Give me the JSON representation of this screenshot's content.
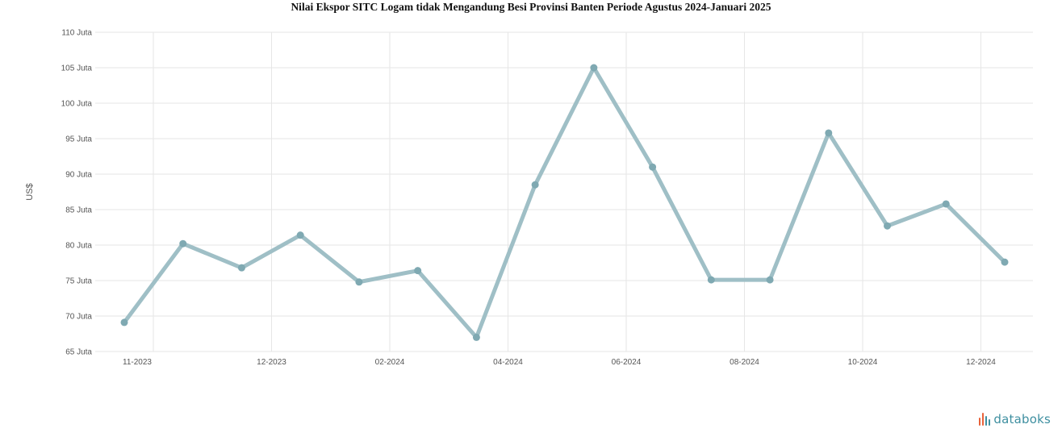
{
  "title": "Nilai Ekspor SITC Logam tidak Mengandung Besi Provinsi Banten Periode Agustus 2024-Januari 2025",
  "brand": {
    "text": "databoks",
    "icon": "databoks-logo-icon",
    "accent": "#e8623a",
    "color": "#3e8fa0"
  },
  "colors": {
    "line": "#9fbfc6",
    "marker": "#7fa9b2",
    "grid": "#e6e6e6"
  },
  "chart_data": {
    "type": "line",
    "title": "Nilai Ekspor SITC Logam tidak Mengandung Besi Provinsi Banten Periode Agustus 2024-Januari 2025",
    "ylabel": "US$",
    "xlabel": "",
    "ylim": [
      65,
      110
    ],
    "y_ticks": [
      65,
      70,
      75,
      80,
      85,
      90,
      95,
      100,
      105,
      110
    ],
    "y_tick_labels": [
      "65 Juta",
      "70 Juta",
      "75 Juta",
      "80 Juta",
      "85 Juta",
      "90 Juta",
      "95 Juta",
      "100 Juta",
      "105 Juta",
      "110 Juta"
    ],
    "x_tick_labels": [
      "11-2023",
      "12-2023",
      "02-2024",
      "04-2024",
      "06-2024",
      "08-2024",
      "10-2024",
      "12-2024"
    ],
    "grid": true,
    "series": [
      {
        "values": [
          69.1,
          80.2,
          76.8,
          81.4,
          74.8,
          76.4,
          67.0,
          88.5,
          105.0,
          91.0,
          75.1,
          75.1,
          95.8,
          82.7,
          85.8,
          77.6
        ]
      }
    ]
  }
}
